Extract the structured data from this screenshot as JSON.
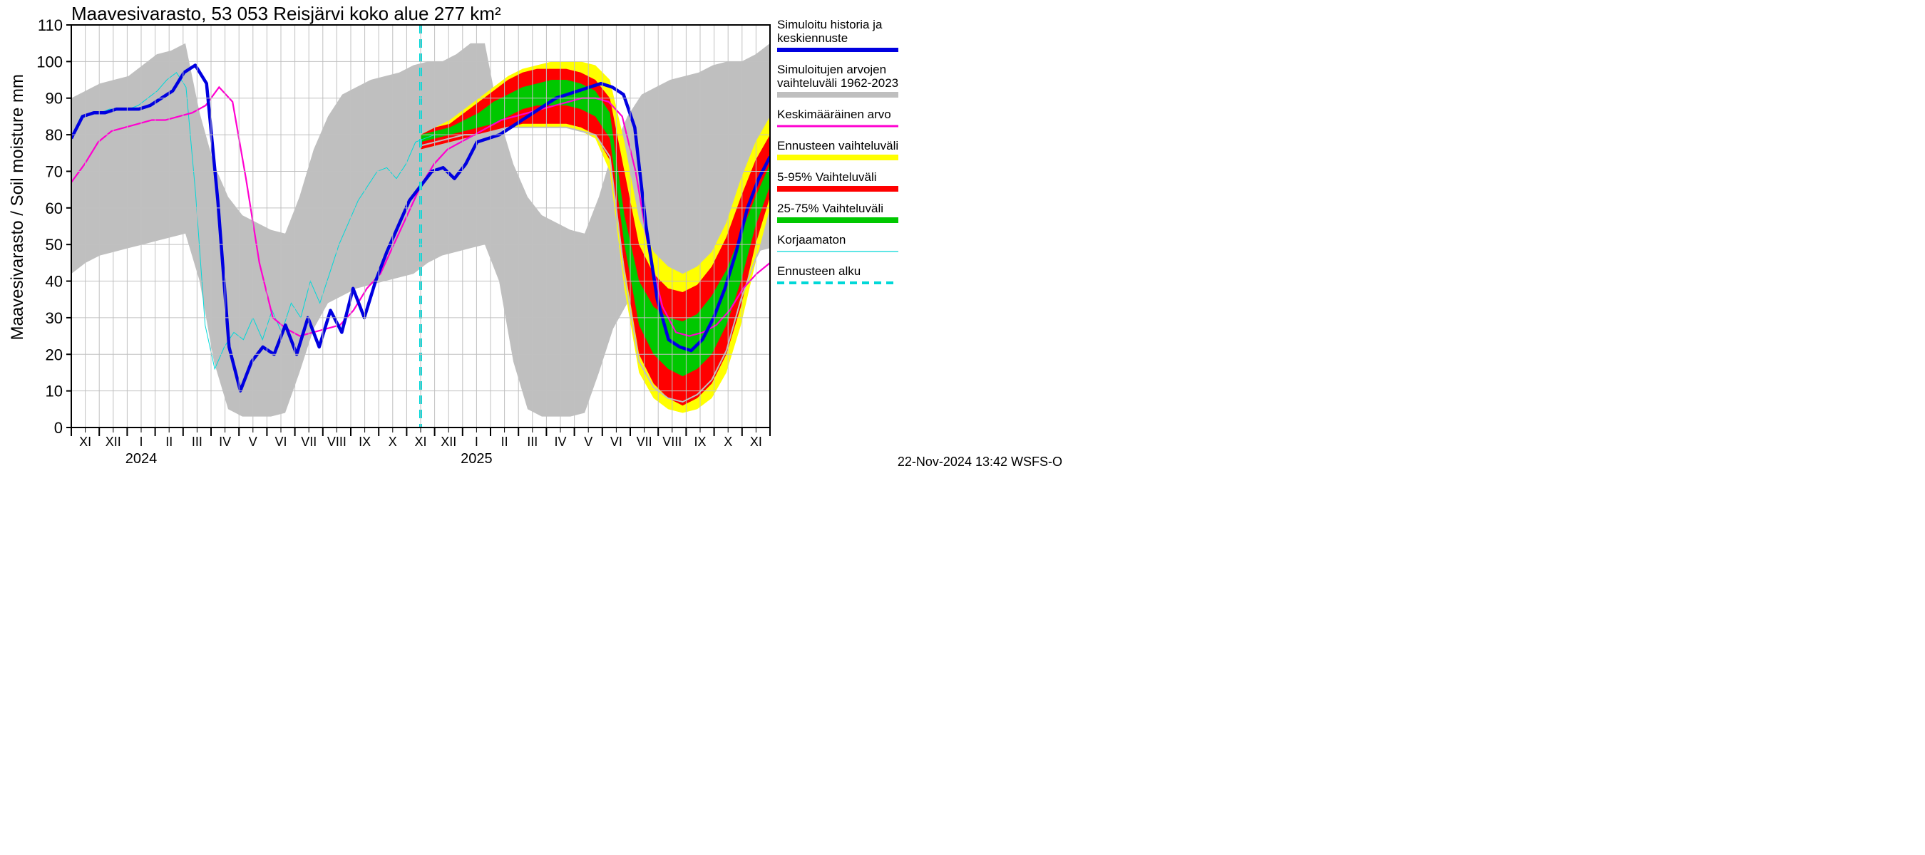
{
  "chart": {
    "type": "line-band-forecast",
    "title": "Maavesivarasto, 53 053 Reisjärvi koko alue 277 km²",
    "ylabel": "Maavesivarasto / Soil moisture   mm",
    "signature": "22-Nov-2024 13:42 WSFS-O",
    "background_color": "#ffffff",
    "grid_color": "#c0c0c0",
    "axis_color": "#000000",
    "title_fontsize": 26,
    "ylabel_fontsize": 24,
    "tick_fontsize": 22,
    "month_fontsize": 18,
    "year_fontsize": 20,
    "yaxis": {
      "min": 0,
      "max": 110,
      "ticks": [
        0,
        10,
        20,
        30,
        40,
        50,
        60,
        70,
        80,
        90,
        100,
        110
      ]
    },
    "xaxis": {
      "months": [
        "XI",
        "XII",
        "I",
        "II",
        "III",
        "IV",
        "V",
        "VI",
        "VII",
        "VIII",
        "IX",
        "X",
        "XI",
        "XII",
        "I",
        "II",
        "III",
        "IV",
        "V",
        "VI",
        "VII",
        "VIII",
        "IX",
        "X",
        "XI"
      ],
      "year_labels": [
        {
          "text": "2024",
          "under_month_index": 2
        },
        {
          "text": "2025",
          "under_month_index": 14
        }
      ],
      "month_count": 25
    },
    "forecast_start_month_index": 12.5,
    "colors": {
      "gray_band": "#bfbfbf",
      "yellow_band": "#ffff00",
      "red_band": "#ff0000",
      "green_band": "#00c800",
      "blue_line": "#0000e0",
      "magenta_line": "#ff00d0",
      "cyan_thin": "#00d8d8",
      "cyan_dash": "#00d8d8",
      "gray_line": "#bfbfbf"
    },
    "line_widths": {
      "blue": 4.5,
      "magenta": 2.2,
      "cyan_thin": 1,
      "cyan_dash": 4,
      "gray_line": 2
    },
    "cyan_dash_pattern": "12,8",
    "gray_band": {
      "upper": [
        90,
        92,
        94,
        95,
        96,
        99,
        102,
        103,
        105,
        86,
        72,
        63,
        58,
        56,
        54,
        53,
        63,
        76,
        85,
        91,
        93,
        95,
        96,
        97,
        99,
        100,
        100,
        102,
        105,
        105,
        85,
        72,
        63,
        58,
        56,
        54,
        53,
        63,
        76,
        85,
        91,
        93,
        95,
        96,
        97,
        99,
        100,
        100,
        102,
        105
      ],
      "lower": [
        42,
        45,
        47,
        48,
        49,
        50,
        51,
        52,
        53,
        40,
        18,
        5,
        3,
        3,
        3,
        4,
        15,
        27,
        34,
        36,
        38,
        39,
        40,
        41,
        42,
        45,
        47,
        48,
        49,
        50,
        40,
        18,
        5,
        3,
        3,
        3,
        4,
        15,
        27,
        34,
        36,
        38,
        39,
        40,
        41,
        42,
        45,
        47,
        48,
        49
      ]
    },
    "yellow_band": {
      "upper": [
        80,
        82,
        84,
        87,
        90,
        93,
        96,
        98,
        99,
        100,
        100,
        100,
        99,
        95,
        78,
        57,
        48,
        44,
        42,
        44,
        48,
        56,
        68,
        78,
        85
      ],
      "lower": [
        76,
        77,
        78,
        79,
        80,
        81,
        82,
        82,
        82,
        82,
        82,
        81,
        79,
        70,
        38,
        15,
        8,
        5,
        4,
        5,
        8,
        15,
        28,
        45,
        60
      ]
    },
    "red_band": {
      "upper": [
        80,
        82,
        83,
        86,
        89,
        92,
        95,
        97,
        98,
        98,
        98,
        97,
        95,
        90,
        70,
        50,
        42,
        38,
        37,
        39,
        44,
        52,
        63,
        73,
        80
      ],
      "lower": [
        76,
        77,
        78,
        79,
        80,
        81,
        82,
        83,
        83,
        83,
        83,
        82,
        80,
        73,
        44,
        20,
        12,
        8,
        6,
        8,
        12,
        20,
        33,
        50,
        63
      ]
    },
    "green_band": {
      "upper": [
        80,
        81,
        82,
        84,
        86,
        89,
        91,
        93,
        94,
        95,
        95,
        94,
        92,
        86,
        58,
        40,
        33,
        30,
        29,
        31,
        36,
        43,
        53,
        63,
        72
      ],
      "lower": [
        78,
        79,
        80,
        81,
        82,
        83,
        85,
        87,
        88,
        88,
        88,
        87,
        85,
        79,
        50,
        28,
        20,
        16,
        14,
        16,
        20,
        28,
        40,
        55,
        66
      ]
    },
    "gray_line_in_band": [
      77,
      78,
      79,
      80,
      80,
      81,
      82,
      82,
      82,
      82,
      82,
      81,
      80,
      74,
      42,
      18,
      11,
      8,
      7,
      9,
      13,
      21,
      35,
      46,
      54
    ],
    "blue_line": [
      79,
      85,
      86,
      86,
      87,
      87,
      87,
      88,
      90,
      92,
      97,
      99,
      94,
      62,
      22,
      10,
      18,
      22,
      20,
      28,
      20,
      30,
      22,
      32,
      26,
      38,
      30,
      40,
      48,
      55,
      62,
      66,
      70,
      71,
      68,
      72,
      78,
      79,
      80,
      82,
      84,
      86,
      88,
      90,
      91,
      92,
      93,
      94,
      93,
      91,
      82,
      55,
      35,
      24,
      22,
      21,
      24,
      30,
      38,
      48,
      60,
      68,
      74
    ],
    "magenta_line": [
      67,
      72,
      78,
      81,
      82,
      83,
      84,
      84,
      85,
      86,
      88,
      93,
      89,
      68,
      45,
      30,
      27,
      25,
      26,
      27,
      28,
      32,
      38,
      42,
      50,
      58,
      66,
      72,
      76,
      78,
      80,
      82,
      84,
      85,
      86,
      87,
      88,
      89,
      90,
      90,
      89,
      85,
      70,
      48,
      33,
      26,
      25,
      26,
      28,
      32,
      38,
      42,
      45
    ],
    "cyan_thin_line": [
      79,
      85,
      86,
      86,
      87,
      87,
      87,
      88,
      90,
      92,
      95,
      97,
      93,
      64,
      28,
      16,
      22,
      26,
      24,
      30,
      24,
      32,
      26,
      34,
      30,
      40,
      34,
      42,
      50,
      56,
      62,
      66,
      70,
      71,
      68,
      72,
      78,
      79,
      80
    ],
    "legend": {
      "items": [
        {
          "type": "line",
          "color": "#0000e0",
          "width": 6,
          "labels": [
            "Simuloitu historia ja",
            "keskiennuste"
          ]
        },
        {
          "type": "line",
          "color": "#bfbfbf",
          "width": 8,
          "labels": [
            "Simuloitujen arvojen",
            "vaihteluväli 1962-2023"
          ]
        },
        {
          "type": "line",
          "color": "#ff00d0",
          "width": 3,
          "labels": [
            "Keskimääräinen arvo"
          ]
        },
        {
          "type": "line",
          "color": "#ffff00",
          "width": 8,
          "labels": [
            "Ennusteen vaihteluväli"
          ]
        },
        {
          "type": "line",
          "color": "#ff0000",
          "width": 8,
          "labels": [
            "5-95% Vaihteluväli"
          ]
        },
        {
          "type": "line",
          "color": "#00c800",
          "width": 8,
          "labels": [
            "25-75% Vaihteluväli"
          ]
        },
        {
          "type": "line",
          "color": "#00d8d8",
          "width": 1.2,
          "labels": [
            "Korjaamaton"
          ]
        },
        {
          "type": "dash",
          "color": "#00d8d8",
          "width": 4,
          "dash": "10,7",
          "labels": [
            "Ennusteen alku"
          ]
        }
      ]
    }
  }
}
